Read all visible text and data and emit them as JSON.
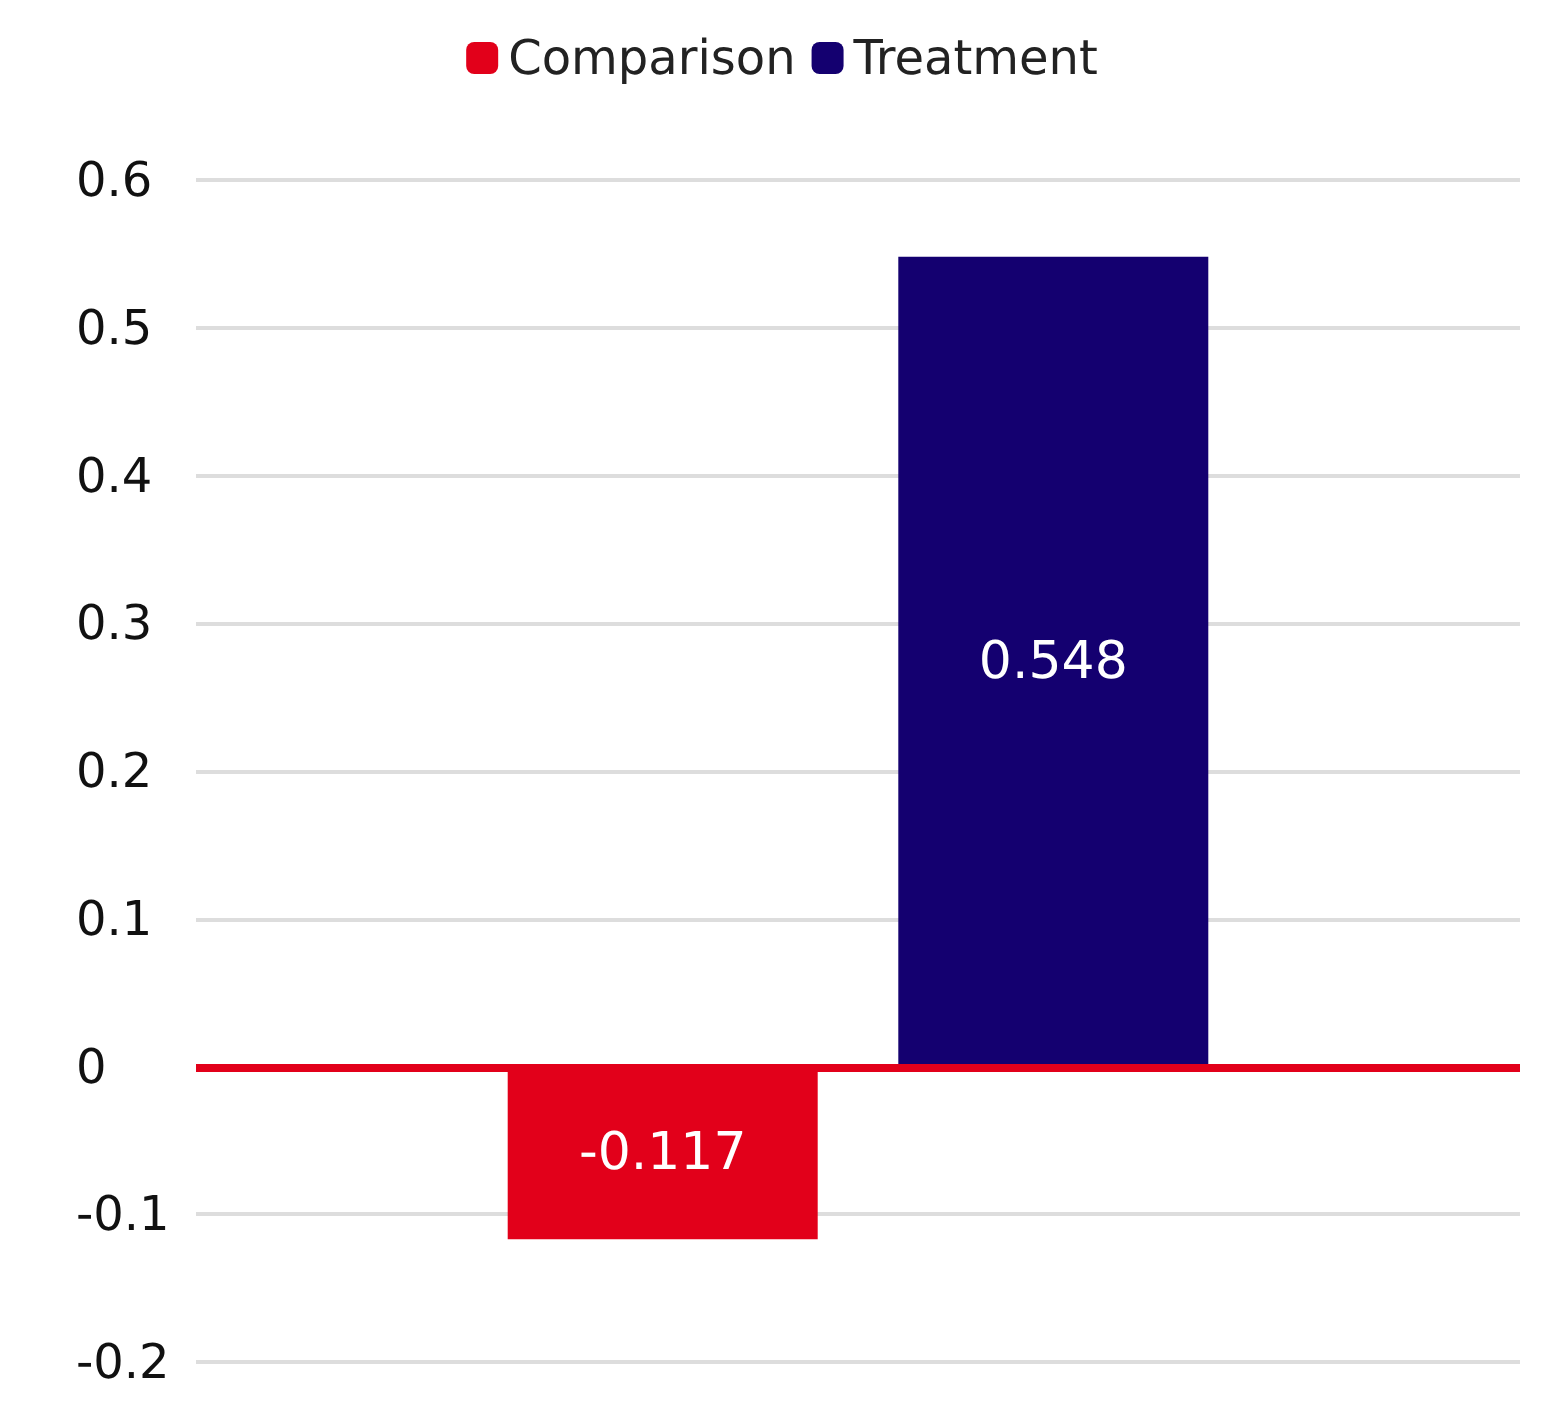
{
  "chart_data": {
    "type": "bar",
    "categories": [
      null
    ],
    "series": [
      {
        "name": "Comparison",
        "color": "#e2001a",
        "values": [
          -0.117
        ]
      },
      {
        "name": "Treatment",
        "color": "#140070",
        "values": [
          0.548
        ]
      }
    ],
    "ylim": [
      -0.2,
      0.6
    ],
    "yticks": [
      -0.2,
      -0.1,
      0,
      0.1,
      0.2,
      0.3,
      0.4,
      0.5,
      0.6
    ],
    "grid": "y",
    "legend": "top",
    "data_labels": true,
    "ref_lines": [
      {
        "axis": "y",
        "value": 0,
        "color": "#e2001a"
      }
    ]
  }
}
